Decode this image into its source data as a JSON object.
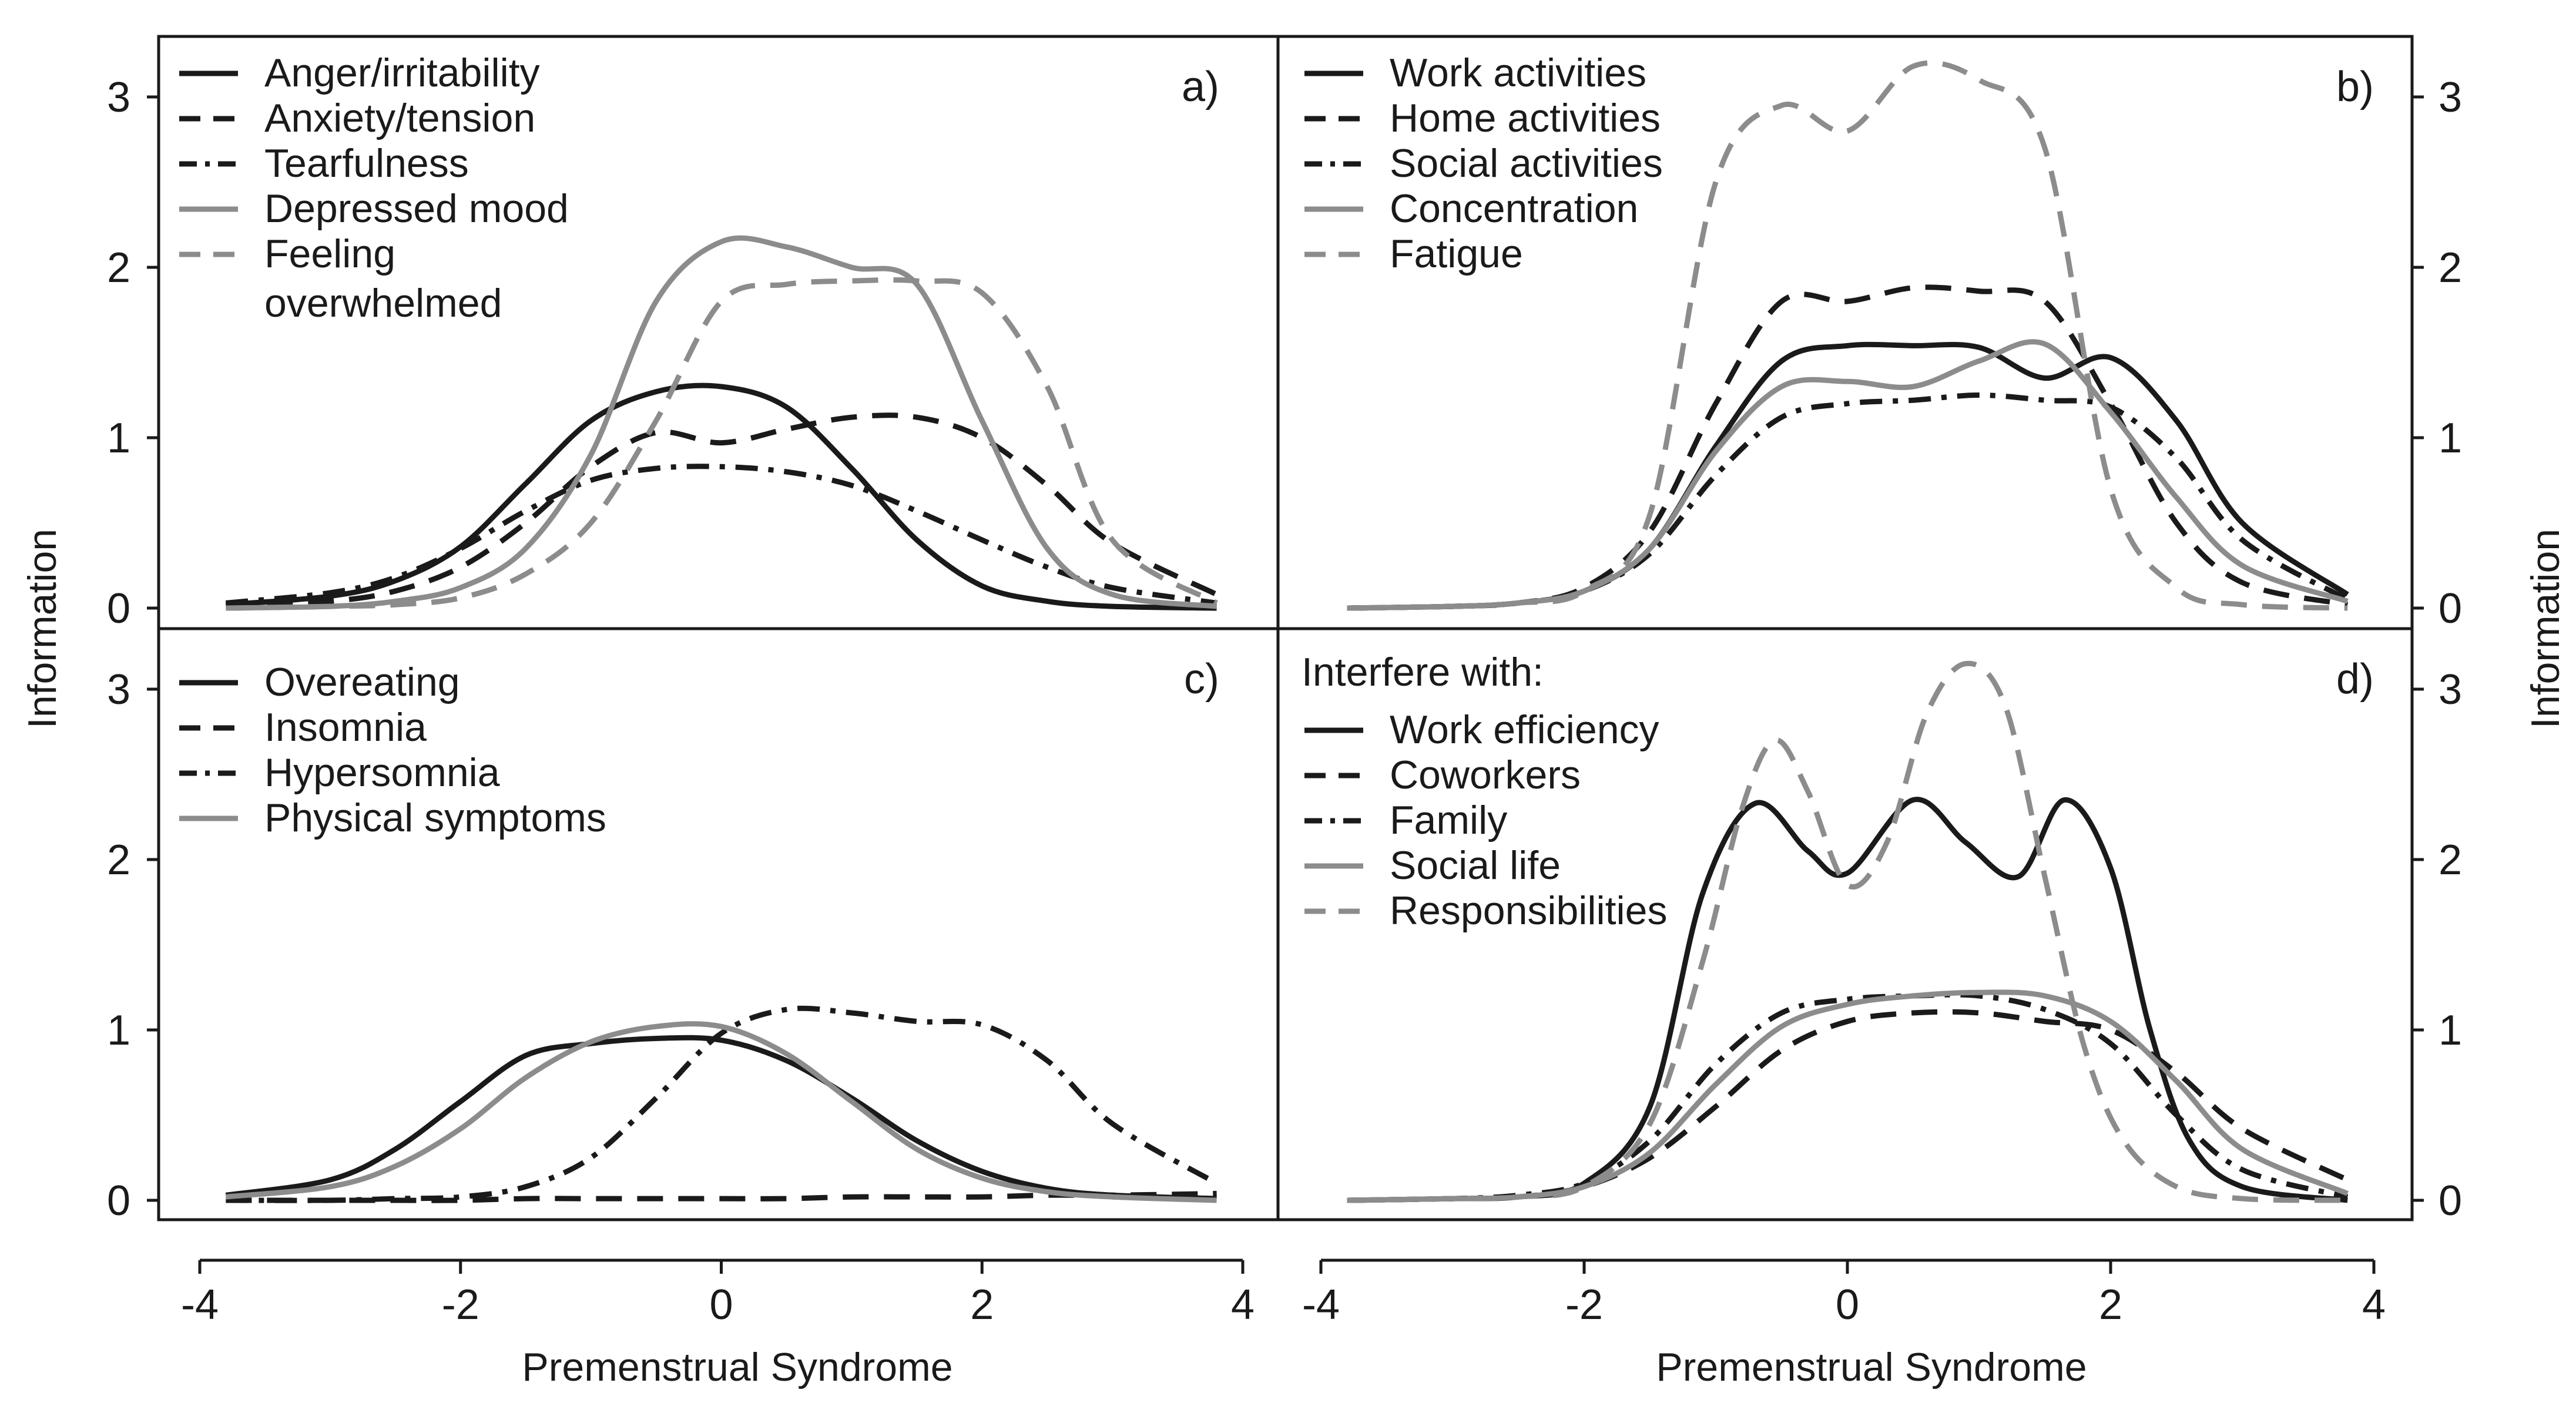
{
  "chart_data": [
    {
      "type": "line",
      "panel": "a)",
      "xlim": [
        -4,
        4
      ],
      "ylim": [
        0,
        3.3
      ],
      "x_ticks": [
        "-4",
        "-2",
        "0",
        "2",
        "4"
      ],
      "y_ticks": [
        "0",
        "1",
        "2",
        "3"
      ],
      "ylabel": "Information",
      "xlabel": "Premenstrual Syndrome",
      "legend_title": "",
      "series": [
        {
          "name": "Anger/irritability",
          "color": "#1a1a1a",
          "dash": "solid",
          "x": [
            -3.8,
            -3,
            -2.5,
            -2,
            -1.5,
            -1,
            -0.5,
            0,
            0.5,
            1,
            1.5,
            2,
            2.5,
            3,
            3.8
          ],
          "values": [
            0.02,
            0.07,
            0.16,
            0.36,
            0.73,
            1.1,
            1.27,
            1.3,
            1.18,
            0.82,
            0.4,
            0.13,
            0.04,
            0.01,
            0.0
          ]
        },
        {
          "name": "Anxiety/tension",
          "color": "#1a1a1a",
          "dash": "dash",
          "x": [
            -3.8,
            -3,
            -2.5,
            -2,
            -1.5,
            -1,
            -0.5,
            0,
            0.5,
            1,
            1.5,
            2,
            2.5,
            3,
            3.8
          ],
          "values": [
            0.01,
            0.04,
            0.1,
            0.24,
            0.5,
            0.83,
            1.03,
            0.97,
            1.05,
            1.12,
            1.12,
            1.0,
            0.72,
            0.38,
            0.08
          ]
        },
        {
          "name": "Tearfulness",
          "color": "#1a1a1a",
          "dash": "dashdot",
          "x": [
            -3.8,
            -3,
            -2.5,
            -2,
            -1.5,
            -1,
            -0.5,
            0,
            0.5,
            1,
            1.5,
            2,
            2.5,
            3,
            3.8
          ],
          "values": [
            0.03,
            0.09,
            0.18,
            0.35,
            0.57,
            0.75,
            0.82,
            0.83,
            0.8,
            0.72,
            0.57,
            0.4,
            0.24,
            0.12,
            0.03
          ]
        },
        {
          "name": "Depressed mood",
          "color": "#8c8c8c",
          "dash": "solid",
          "x": [
            -3.8,
            -3,
            -2.5,
            -2,
            -1.5,
            -1,
            -0.5,
            0,
            0.5,
            1,
            1.5,
            2,
            2.5,
            3,
            3.8
          ],
          "values": [
            0.0,
            0.01,
            0.04,
            0.12,
            0.35,
            0.9,
            1.8,
            2.15,
            2.12,
            2.0,
            1.9,
            1.1,
            0.35,
            0.08,
            0.01
          ]
        },
        {
          "name": "Feeling\noverwhelmed",
          "color": "#8c8c8c",
          "dash": "dash",
          "x": [
            -3.8,
            -3,
            -2.5,
            -2,
            -1.5,
            -1,
            -0.5,
            0,
            0.5,
            1,
            1.5,
            2,
            2.5,
            3,
            3.8
          ],
          "values": [
            0.0,
            0.01,
            0.02,
            0.06,
            0.2,
            0.5,
            1.1,
            1.8,
            1.9,
            1.92,
            1.92,
            1.85,
            1.3,
            0.4,
            0.03
          ]
        }
      ]
    },
    {
      "type": "line",
      "panel": "b)",
      "xlim": [
        -4,
        4
      ],
      "ylim": [
        0,
        3.3
      ],
      "x_ticks": [
        "-4",
        "-2",
        "0",
        "2",
        "4"
      ],
      "y_ticks": [
        "0",
        "1",
        "2",
        "3"
      ],
      "ylabel": "Information",
      "xlabel": "Premenstrual Syndrome",
      "legend_title": "",
      "series": [
        {
          "name": "Work activities",
          "color": "#1a1a1a",
          "dash": "solid",
          "x": [
            -3.8,
            -3,
            -2.5,
            -2,
            -1.5,
            -1,
            -0.5,
            0,
            0.5,
            1,
            1.5,
            2,
            2.5,
            3,
            3.8
          ],
          "values": [
            0.0,
            0.01,
            0.03,
            0.1,
            0.35,
            0.95,
            1.45,
            1.54,
            1.54,
            1.53,
            1.35,
            1.47,
            1.1,
            0.5,
            0.08
          ]
        },
        {
          "name": "Home activities",
          "color": "#1a1a1a",
          "dash": "dash",
          "x": [
            -3.8,
            -3,
            -2.5,
            -2,
            -1.5,
            -1,
            -0.5,
            0,
            0.5,
            1,
            1.5,
            2,
            2.5,
            3,
            3.8
          ],
          "values": [
            0.0,
            0.01,
            0.03,
            0.12,
            0.45,
            1.2,
            1.8,
            1.8,
            1.88,
            1.86,
            1.8,
            1.2,
            0.5,
            0.15,
            0.02
          ]
        },
        {
          "name": "Social activities",
          "color": "#1a1a1a",
          "dash": "dashdot",
          "x": [
            -3.8,
            -3,
            -2.5,
            -2,
            -1.5,
            -1,
            -0.5,
            0,
            0.5,
            1,
            1.5,
            2,
            2.5,
            3,
            3.8
          ],
          "values": [
            0.0,
            0.01,
            0.03,
            0.1,
            0.32,
            0.78,
            1.12,
            1.2,
            1.22,
            1.25,
            1.22,
            1.18,
            0.88,
            0.4,
            0.05
          ]
        },
        {
          "name": "Concentration",
          "color": "#8c8c8c",
          "dash": "solid",
          "x": [
            -3.8,
            -3,
            -2.5,
            -2,
            -1.5,
            -1,
            -0.5,
            0,
            0.5,
            1,
            1.5,
            2,
            2.5,
            3,
            3.8
          ],
          "values": [
            0.0,
            0.01,
            0.03,
            0.1,
            0.35,
            0.92,
            1.3,
            1.33,
            1.3,
            1.45,
            1.55,
            1.15,
            0.65,
            0.25,
            0.04
          ]
        },
        {
          "name": "Fatigue",
          "color": "#8c8c8c",
          "dash": "dash",
          "x": [
            -3.8,
            -3,
            -2.5,
            -2,
            -1.5,
            -1,
            -0.5,
            0,
            0.5,
            1,
            1.5,
            2,
            2.5,
            3,
            3.8
          ],
          "values": [
            0.0,
            0.01,
            0.03,
            0.1,
            0.55,
            2.5,
            2.95,
            2.8,
            3.18,
            3.1,
            2.7,
            0.7,
            0.12,
            0.02,
            0.0
          ]
        }
      ]
    },
    {
      "type": "line",
      "panel": "c)",
      "xlim": [
        -4,
        4
      ],
      "ylim": [
        0,
        3.3
      ],
      "x_ticks": [
        "-4",
        "-2",
        "0",
        "2",
        "4"
      ],
      "y_ticks": [
        "0",
        "1",
        "2",
        "3"
      ],
      "ylabel": "Information",
      "xlabel": "Premenstrual Syndrome",
      "legend_title": "",
      "series": [
        {
          "name": "Overeating",
          "color": "#1a1a1a",
          "dash": "solid",
          "x": [
            -3.8,
            -3,
            -2.5,
            -2,
            -1.5,
            -1,
            -0.5,
            0,
            0.5,
            1,
            1.5,
            2,
            2.5,
            3,
            3.8
          ],
          "values": [
            0.03,
            0.12,
            0.3,
            0.58,
            0.85,
            0.92,
            0.95,
            0.94,
            0.82,
            0.6,
            0.35,
            0.17,
            0.07,
            0.03,
            0.01
          ]
        },
        {
          "name": "Insomnia",
          "color": "#1a1a1a",
          "dash": "dash",
          "x": [
            -3.8,
            -3,
            -2.5,
            -2,
            -1.5,
            -1,
            -0.5,
            0,
            0.5,
            1,
            1.5,
            2,
            2.5,
            3,
            3.8
          ],
          "values": [
            0.0,
            0.0,
            0.0,
            0.0,
            0.01,
            0.01,
            0.01,
            0.01,
            0.01,
            0.02,
            0.02,
            0.02,
            0.03,
            0.03,
            0.04
          ]
        },
        {
          "name": "Hypersomnia",
          "color": "#1a1a1a",
          "dash": "dashdot",
          "x": [
            -3.8,
            -3,
            -2.5,
            -2,
            -1.5,
            -1,
            -0.5,
            0,
            0.5,
            1,
            1.5,
            2,
            2.5,
            3,
            3.8
          ],
          "values": [
            0.0,
            0.0,
            0.01,
            0.02,
            0.08,
            0.25,
            0.6,
            0.98,
            1.12,
            1.1,
            1.05,
            1.03,
            0.82,
            0.45,
            0.1
          ]
        },
        {
          "name": "Physical symptoms",
          "color": "#8c8c8c",
          "dash": "solid",
          "x": [
            -3.8,
            -3,
            -2.5,
            -2,
            -1.5,
            -1,
            -0.5,
            0,
            0.5,
            1,
            1.5,
            2,
            2.5,
            3,
            3.8
          ],
          "values": [
            0.02,
            0.08,
            0.2,
            0.42,
            0.72,
            0.93,
            1.02,
            1.02,
            0.86,
            0.58,
            0.3,
            0.13,
            0.05,
            0.02,
            0.0
          ]
        }
      ]
    },
    {
      "type": "line",
      "panel": "d)",
      "xlim": [
        -4,
        4
      ],
      "ylim": [
        0,
        3.3
      ],
      "x_ticks": [
        "-4",
        "-2",
        "0",
        "2",
        "4"
      ],
      "y_ticks": [
        "0",
        "1",
        "2",
        "3"
      ],
      "ylabel": "Information",
      "xlabel": "Premenstrual Syndrome",
      "legend_title": "Interfere with:",
      "series": [
        {
          "name": "Work efficiency",
          "color": "#1a1a1a",
          "dash": "solid",
          "x": [
            -3.8,
            -3,
            -2.5,
            -2,
            -1.5,
            -1.1,
            -0.7,
            -0.3,
            0,
            0.5,
            0.9,
            1.3,
            1.65,
            2.0,
            2.3,
            2.6,
            3,
            3.8
          ],
          "values": [
            0.0,
            0.01,
            0.02,
            0.1,
            0.55,
            1.8,
            2.33,
            2.05,
            1.92,
            2.35,
            2.1,
            1.9,
            2.35,
            1.95,
            1.0,
            0.35,
            0.08,
            0.0
          ]
        },
        {
          "name": "Coworkers",
          "color": "#1a1a1a",
          "dash": "dash",
          "x": [
            -3.8,
            -3,
            -2.5,
            -2,
            -1.5,
            -1,
            -0.5,
            0,
            0.5,
            1,
            1.5,
            2,
            2.5,
            3,
            3.8
          ],
          "values": [
            0.0,
            0.01,
            0.02,
            0.08,
            0.25,
            0.55,
            0.88,
            1.05,
            1.1,
            1.1,
            1.05,
            1.0,
            0.75,
            0.42,
            0.12
          ]
        },
        {
          "name": "Family",
          "color": "#1a1a1a",
          "dash": "dashdot",
          "x": [
            -3.8,
            -3,
            -2.5,
            -2,
            -1.5,
            -1,
            -0.5,
            0,
            0.5,
            1,
            1.5,
            2,
            2.5,
            3,
            3.8
          ],
          "values": [
            0.0,
            0.01,
            0.03,
            0.1,
            0.35,
            0.8,
            1.1,
            1.18,
            1.2,
            1.2,
            1.12,
            0.92,
            0.5,
            0.18,
            0.02
          ]
        },
        {
          "name": "Social life",
          "color": "#8c8c8c",
          "dash": "solid",
          "x": [
            -3.8,
            -3,
            -2.5,
            -2,
            -1.5,
            -1,
            -0.5,
            0,
            0.5,
            1,
            1.5,
            2,
            2.5,
            3,
            3.8
          ],
          "values": [
            0.0,
            0.01,
            0.02,
            0.08,
            0.28,
            0.68,
            1.02,
            1.15,
            1.2,
            1.22,
            1.2,
            1.05,
            0.7,
            0.3,
            0.04
          ]
        },
        {
          "name": "Responsibilities",
          "color": "#8c8c8c",
          "dash": "dash",
          "x": [
            -3.8,
            -3,
            -2.5,
            -2,
            -1.5,
            -1.1,
            -0.8,
            -0.55,
            -0.3,
            0,
            0.3,
            0.6,
            0.9,
            1.2,
            1.5,
            1.8,
            2.1,
            2.5,
            3,
            3.8
          ],
          "values": [
            0.0,
            0.01,
            0.02,
            0.08,
            0.45,
            1.4,
            2.3,
            2.7,
            2.4,
            1.85,
            2.1,
            2.85,
            3.15,
            2.9,
            1.9,
            0.9,
            0.35,
            0.08,
            0.01,
            0.0
          ]
        }
      ]
    }
  ]
}
